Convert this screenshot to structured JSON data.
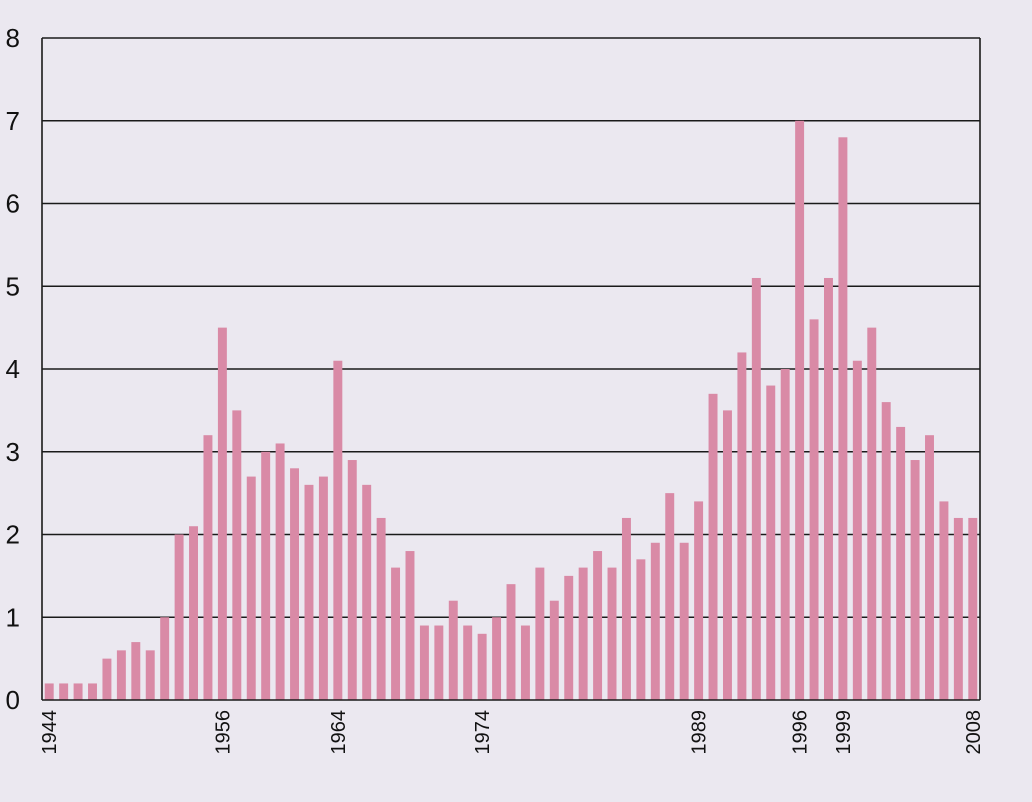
{
  "chart_data": {
    "type": "bar",
    "title": "",
    "xlabel": "",
    "ylabel": "",
    "ylim": [
      0,
      8
    ],
    "y_ticks": [
      "0",
      "1",
      "2",
      "3",
      "4",
      "5",
      "6",
      "7",
      "8"
    ],
    "grid": "horizontal",
    "bar_color": "#d98aa6",
    "categories": [
      "1944",
      "1945",
      "1946",
      "1947",
      "1948",
      "1949",
      "1950",
      "1951",
      "1952",
      "1953",
      "1954",
      "1955",
      "1956",
      "1957",
      "1958",
      "1959",
      "1960",
      "1961",
      "1962",
      "1963",
      "1964",
      "1965",
      "1966",
      "1967",
      "1968",
      "1969",
      "1970",
      "1971",
      "1972",
      "1973",
      "1974",
      "1975",
      "1976",
      "1977",
      "1978",
      "1979",
      "1980",
      "1981",
      "1982",
      "1983",
      "1984",
      "1985",
      "1986",
      "1987",
      "1988",
      "1989",
      "1990",
      "1991",
      "1992",
      "1993",
      "1994",
      "1995",
      "1996",
      "1997",
      "1998",
      "1999",
      "2000",
      "2001",
      "2002",
      "2003",
      "2004",
      "2005",
      "2006",
      "2007",
      "2008"
    ],
    "values": [
      0.2,
      0.2,
      0.2,
      0.2,
      0.5,
      0.6,
      0.7,
      0.6,
      1.0,
      2.0,
      2.1,
      3.2,
      4.5,
      3.5,
      2.7,
      3.0,
      3.1,
      2.8,
      2.6,
      2.7,
      4.1,
      2.9,
      2.6,
      2.2,
      1.6,
      1.8,
      0.9,
      0.9,
      1.2,
      0.9,
      0.8,
      1.0,
      1.4,
      0.9,
      1.6,
      1.2,
      1.5,
      1.6,
      1.8,
      1.6,
      2.2,
      1.7,
      1.9,
      2.5,
      1.9,
      2.4,
      3.7,
      3.5,
      4.2,
      5.1,
      3.8,
      4.0,
      7.0,
      4.6,
      5.1,
      6.8,
      4.1,
      4.5,
      3.6,
      3.3,
      2.9,
      3.2,
      2.4,
      2.2,
      2.2
    ],
    "x_tick_labels": [
      "1944",
      "1956",
      "1964",
      "1974",
      "1989",
      "1996",
      "1999",
      "2008"
    ]
  }
}
